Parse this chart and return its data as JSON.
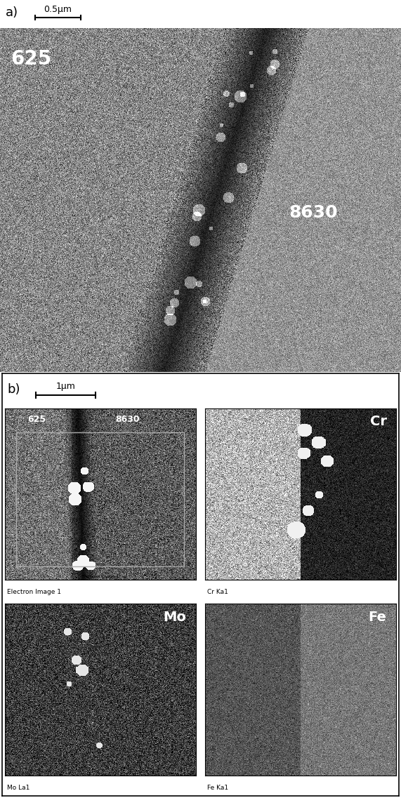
{
  "fig_width": 5.71,
  "fig_height": 11.37,
  "dpi": 100,
  "panel_a_label": "a)",
  "panel_b_label": "b)",
  "scalebar_a_text": "0.5μm",
  "scalebar_b_text": "1μm",
  "label_625": "625",
  "label_8630": "8630",
  "label_cr": "Cr",
  "label_mo": "Mo",
  "label_fe": "Fe",
  "caption_electron": "Electron Image 1",
  "caption_cr": "Cr Ka1",
  "caption_mo": "Mo La1",
  "caption_fe": "Fe Ka1",
  "bg_color": "#ffffff"
}
